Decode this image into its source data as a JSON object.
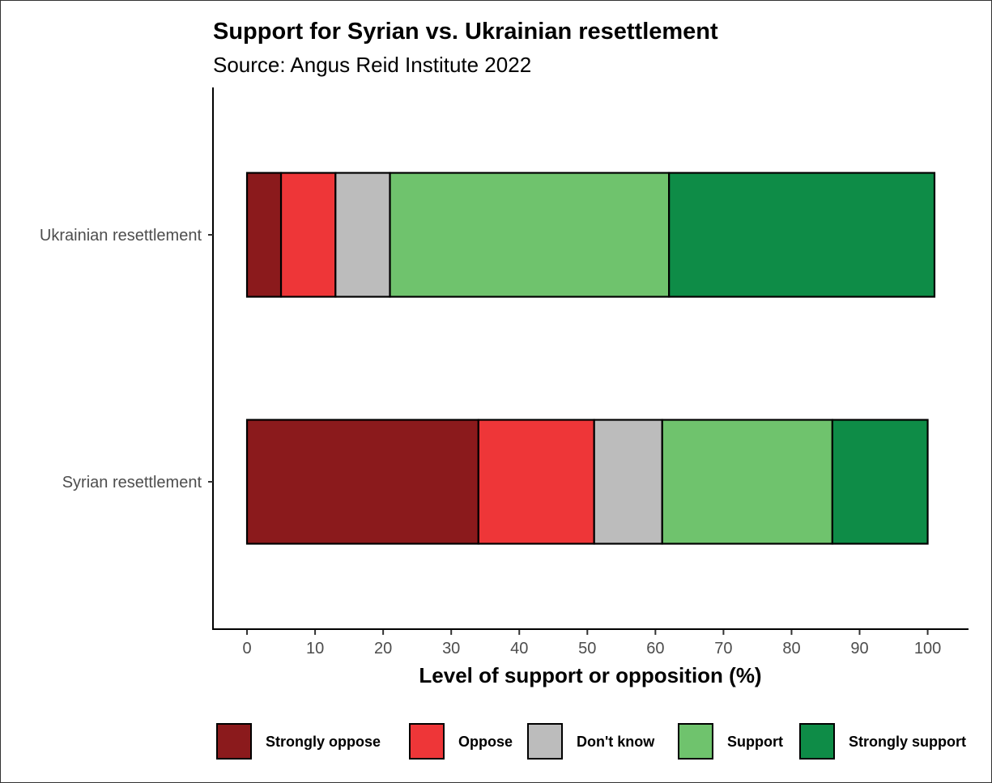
{
  "chart_data": {
    "type": "bar",
    "orientation": "horizontal",
    "stacked": true,
    "title": "Support for Syrian vs. Ukrainian resettlement",
    "subtitle": "Source: Angus Reid Institute 2022",
    "xlabel": "Level of support or opposition (%)",
    "ylabel": "",
    "xlim": [
      -5,
      106
    ],
    "xticks": [
      0,
      10,
      20,
      30,
      40,
      50,
      60,
      70,
      80,
      90,
      100
    ],
    "categories": [
      "Ukrainian resettlement",
      "Syrian resettlement"
    ],
    "series": [
      {
        "name": "Strongly oppose",
        "color": "#8b1a1c",
        "values": [
          5,
          34
        ]
      },
      {
        "name": "Oppose",
        "color": "#ee3638",
        "values": [
          8,
          17
        ]
      },
      {
        "name": "Don't know",
        "color": "#bcbcbc",
        "values": [
          8,
          10
        ]
      },
      {
        "name": "Support",
        "color": "#6fc36d",
        "values": [
          41,
          25
        ]
      },
      {
        "name": "Strongly support",
        "color": "#0e8c47",
        "values": [
          39,
          14
        ]
      }
    ],
    "grid": false,
    "legend_position": "bottom"
  }
}
